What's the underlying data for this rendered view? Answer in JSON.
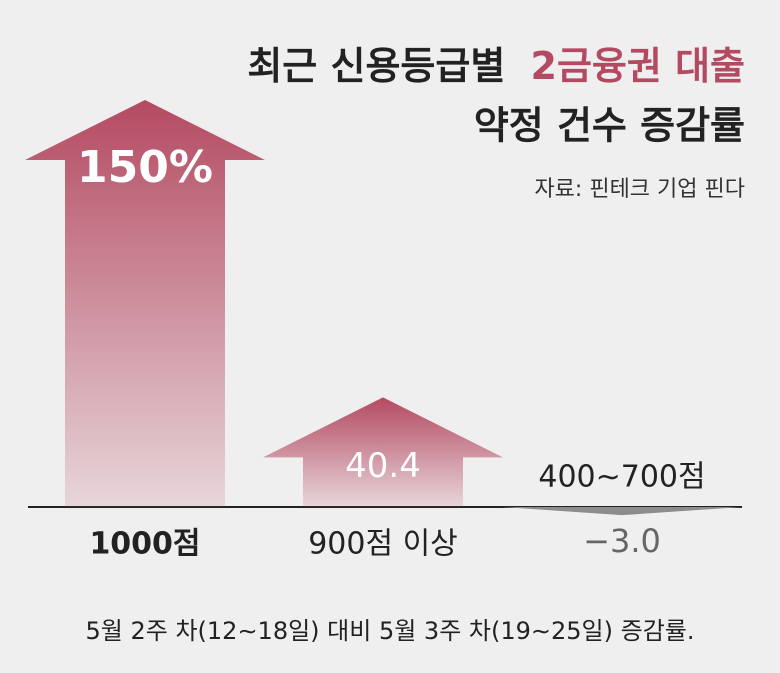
{
  "chart_data": {
    "type": "arrow-bar",
    "title": [
      "최근 신용등급별",
      "2금융권 대출",
      "약정 건수 증감률"
    ],
    "title_color": "#222222",
    "highlight_color": "#b44a62",
    "source": "자료: 핀테크 기업 핀다",
    "categories": [
      "1000점",
      "900점 이상",
      "400∼700점"
    ],
    "values": [
      150,
      40.4,
      -3.0
    ],
    "value_labels": [
      "150%",
      "40.4",
      "−3.0"
    ],
    "colors": [
      "#b44a62",
      "#b44a62",
      "#8c8c8c"
    ],
    "ylim": [
      0,
      150
    ],
    "footnote": "5월 2주 차(12∼18일) 대비 5월 3주 차(19∼25일) 증감률."
  }
}
